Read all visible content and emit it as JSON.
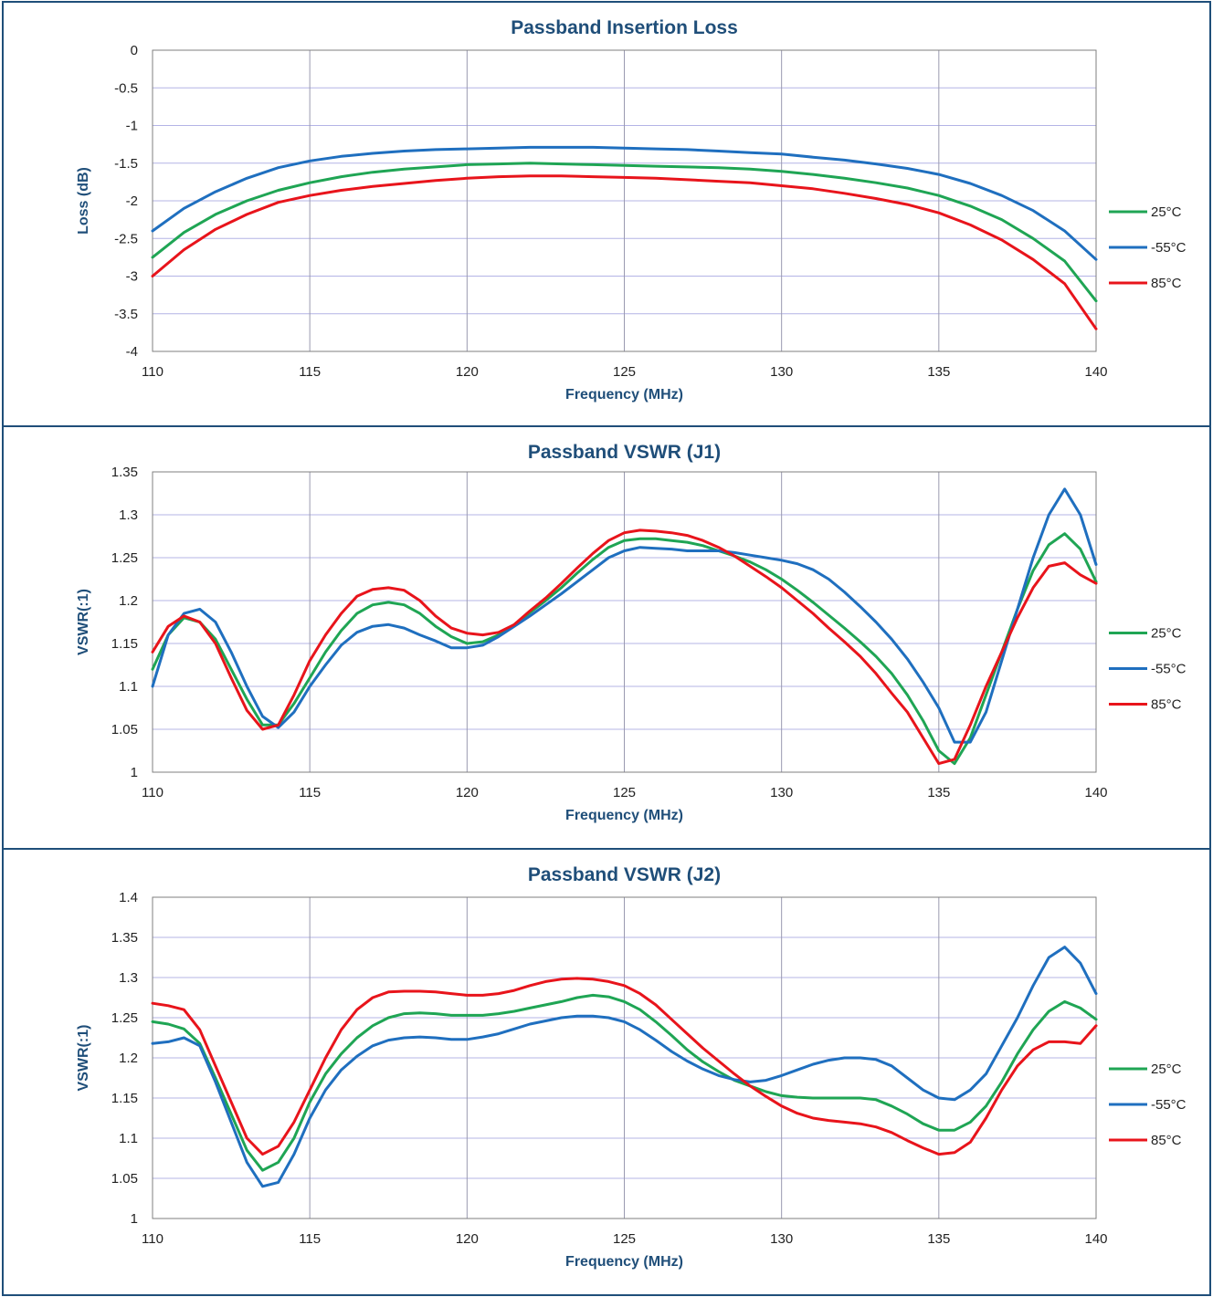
{
  "chart_data": [
    {
      "type": "line",
      "title": "Passband Insertion Loss",
      "xlabel": "Frequency (MHz)",
      "ylabel": "Loss (dB)",
      "xlim": [
        110,
        140
      ],
      "ylim": [
        -4,
        0
      ],
      "xticks": [
        "110",
        "115",
        "120",
        "125",
        "130",
        "135",
        "140"
      ],
      "yticks": [
        "0",
        "-0.5",
        "-1",
        "-1.5",
        "-2",
        "-2.5",
        "-3",
        "-3.5",
        "-4"
      ],
      "grid": true,
      "legend": "right",
      "x": [
        110,
        111,
        112,
        113,
        114,
        115,
        116,
        117,
        118,
        119,
        120,
        121,
        122,
        123,
        124,
        125,
        126,
        127,
        128,
        129,
        130,
        131,
        132,
        133,
        134,
        135,
        136,
        137,
        138,
        139,
        140
      ],
      "series": [
        {
          "name": "25°C",
          "color": "#1fa554",
          "values": [
            -2.75,
            -2.42,
            -2.18,
            -2.0,
            -1.86,
            -1.76,
            -1.68,
            -1.62,
            -1.58,
            -1.55,
            -1.52,
            -1.51,
            -1.5,
            -1.51,
            -1.52,
            -1.53,
            -1.54,
            -1.55,
            -1.56,
            -1.58,
            -1.61,
            -1.65,
            -1.7,
            -1.76,
            -1.83,
            -1.93,
            -2.07,
            -2.25,
            -2.5,
            -2.8,
            -3.33
          ]
        },
        {
          "name": "-55°C",
          "color": "#1f6fbf",
          "values": [
            -2.4,
            -2.1,
            -1.88,
            -1.7,
            -1.56,
            -1.47,
            -1.41,
            -1.37,
            -1.34,
            -1.32,
            -1.31,
            -1.3,
            -1.29,
            -1.29,
            -1.29,
            -1.3,
            -1.31,
            -1.32,
            -1.34,
            -1.36,
            -1.38,
            -1.42,
            -1.46,
            -1.51,
            -1.57,
            -1.65,
            -1.77,
            -1.93,
            -2.13,
            -2.4,
            -2.78
          ]
        },
        {
          "name": "85°C",
          "color": "#e8141b",
          "values": [
            -3.0,
            -2.65,
            -2.38,
            -2.18,
            -2.02,
            -1.93,
            -1.86,
            -1.81,
            -1.77,
            -1.73,
            -1.7,
            -1.68,
            -1.67,
            -1.67,
            -1.68,
            -1.69,
            -1.7,
            -1.72,
            -1.74,
            -1.76,
            -1.8,
            -1.84,
            -1.9,
            -1.97,
            -2.05,
            -2.16,
            -2.32,
            -2.52,
            -2.78,
            -3.1,
            -3.7
          ]
        }
      ]
    },
    {
      "type": "line",
      "title": "Passband VSWR (J1)",
      "xlabel": "Frequency (MHz)",
      "ylabel": "VSWR(:1)",
      "xlim": [
        110,
        140
      ],
      "ylim": [
        1,
        1.35
      ],
      "xticks": [
        "110",
        "115",
        "120",
        "125",
        "130",
        "135",
        "140"
      ],
      "yticks": [
        "1.35",
        "1.3",
        "1.25",
        "1.2",
        "1.15",
        "1.1",
        "1.05",
        "1"
      ],
      "grid": true,
      "legend": "right",
      "x": [
        110,
        110.5,
        111,
        111.5,
        112,
        112.5,
        113,
        113.5,
        114,
        114.5,
        115,
        115.5,
        116,
        116.5,
        117,
        117.5,
        118,
        118.5,
        119,
        119.5,
        120,
        120.5,
        121,
        121.5,
        122,
        122.5,
        123,
        123.5,
        124,
        124.5,
        125,
        125.5,
        126,
        126.5,
        127,
        127.5,
        128,
        128.5,
        129,
        129.5,
        130,
        130.5,
        131,
        131.5,
        132,
        132.5,
        133,
        133.5,
        134,
        134.5,
        135,
        135.5,
        136,
        136.5,
        137,
        137.5,
        138,
        138.5,
        139,
        139.5,
        140
      ],
      "series": [
        {
          "name": "25°C",
          "color": "#1fa554",
          "values": [
            1.12,
            1.16,
            1.18,
            1.175,
            1.155,
            1.12,
            1.085,
            1.055,
            1.055,
            1.08,
            1.11,
            1.14,
            1.165,
            1.185,
            1.195,
            1.198,
            1.195,
            1.185,
            1.17,
            1.158,
            1.15,
            1.152,
            1.16,
            1.172,
            1.186,
            1.2,
            1.215,
            1.232,
            1.248,
            1.262,
            1.27,
            1.272,
            1.272,
            1.27,
            1.268,
            1.264,
            1.258,
            1.252,
            1.245,
            1.236,
            1.225,
            1.212,
            1.198,
            1.183,
            1.168,
            1.152,
            1.135,
            1.115,
            1.09,
            1.06,
            1.025,
            1.01,
            1.04,
            1.09,
            1.14,
            1.19,
            1.235,
            1.265,
            1.278,
            1.26,
            1.222
          ]
        },
        {
          "name": "-55°C",
          "color": "#1f6fbf",
          "values": [
            1.1,
            1.16,
            1.185,
            1.19,
            1.175,
            1.14,
            1.1,
            1.065,
            1.052,
            1.07,
            1.1,
            1.125,
            1.148,
            1.163,
            1.17,
            1.172,
            1.168,
            1.16,
            1.153,
            1.145,
            1.145,
            1.148,
            1.158,
            1.17,
            1.182,
            1.195,
            1.208,
            1.222,
            1.236,
            1.25,
            1.258,
            1.262,
            1.261,
            1.26,
            1.258,
            1.258,
            1.258,
            1.256,
            1.253,
            1.25,
            1.247,
            1.243,
            1.236,
            1.225,
            1.21,
            1.193,
            1.175,
            1.155,
            1.132,
            1.105,
            1.075,
            1.035,
            1.035,
            1.07,
            1.13,
            1.19,
            1.25,
            1.3,
            1.33,
            1.3,
            1.242
          ]
        },
        {
          "name": "85°C",
          "color": "#e8141b",
          "values": [
            1.14,
            1.17,
            1.182,
            1.175,
            1.15,
            1.11,
            1.072,
            1.05,
            1.055,
            1.09,
            1.13,
            1.16,
            1.185,
            1.205,
            1.213,
            1.215,
            1.212,
            1.2,
            1.182,
            1.168,
            1.162,
            1.16,
            1.163,
            1.172,
            1.188,
            1.203,
            1.22,
            1.238,
            1.255,
            1.27,
            1.279,
            1.282,
            1.281,
            1.279,
            1.276,
            1.27,
            1.262,
            1.252,
            1.24,
            1.228,
            1.215,
            1.2,
            1.185,
            1.168,
            1.152,
            1.135,
            1.115,
            1.092,
            1.07,
            1.04,
            1.01,
            1.015,
            1.055,
            1.1,
            1.14,
            1.18,
            1.215,
            1.24,
            1.244,
            1.23,
            1.22
          ]
        }
      ]
    },
    {
      "type": "line",
      "title": "Passband VSWR (J2)",
      "xlabel": "Frequency (MHz)",
      "ylabel": "VSWR(:1)",
      "xlim": [
        110,
        140
      ],
      "ylim": [
        1,
        1.4
      ],
      "xticks": [
        "110",
        "115",
        "120",
        "125",
        "130",
        "135",
        "140"
      ],
      "yticks": [
        "1.4",
        "1.35",
        "1.3",
        "1.25",
        "1.2",
        "1.15",
        "1.1",
        "1.05",
        "1"
      ],
      "grid": true,
      "legend": "right",
      "x": [
        110,
        110.5,
        111,
        111.5,
        112,
        112.5,
        113,
        113.5,
        114,
        114.5,
        115,
        115.5,
        116,
        116.5,
        117,
        117.5,
        118,
        118.5,
        119,
        119.5,
        120,
        120.5,
        121,
        121.5,
        122,
        122.5,
        123,
        123.5,
        124,
        124.5,
        125,
        125.5,
        126,
        126.5,
        127,
        127.5,
        128,
        128.5,
        129,
        129.5,
        130,
        130.5,
        131,
        131.5,
        132,
        132.5,
        133,
        133.5,
        134,
        134.5,
        135,
        135.5,
        136,
        136.5,
        137,
        137.5,
        138,
        138.5,
        139,
        139.5,
        140
      ],
      "series": [
        {
          "name": "25°C",
          "color": "#1fa554",
          "values": [
            1.245,
            1.242,
            1.236,
            1.218,
            1.175,
            1.13,
            1.085,
            1.06,
            1.07,
            1.1,
            1.145,
            1.18,
            1.205,
            1.225,
            1.24,
            1.25,
            1.255,
            1.256,
            1.255,
            1.253,
            1.253,
            1.253,
            1.255,
            1.258,
            1.262,
            1.266,
            1.27,
            1.275,
            1.278,
            1.276,
            1.27,
            1.26,
            1.245,
            1.228,
            1.21,
            1.195,
            1.183,
            1.172,
            1.165,
            1.158,
            1.153,
            1.151,
            1.15,
            1.15,
            1.15,
            1.15,
            1.148,
            1.14,
            1.13,
            1.118,
            1.11,
            1.11,
            1.12,
            1.14,
            1.17,
            1.205,
            1.235,
            1.258,
            1.27,
            1.262,
            1.248
          ]
        },
        {
          "name": "-55°C",
          "color": "#1f6fbf",
          "values": [
            1.218,
            1.22,
            1.225,
            1.215,
            1.17,
            1.12,
            1.07,
            1.04,
            1.045,
            1.08,
            1.125,
            1.16,
            1.185,
            1.202,
            1.215,
            1.222,
            1.225,
            1.226,
            1.225,
            1.223,
            1.223,
            1.226,
            1.23,
            1.236,
            1.242,
            1.246,
            1.25,
            1.252,
            1.252,
            1.25,
            1.245,
            1.235,
            1.222,
            1.208,
            1.196,
            1.186,
            1.178,
            1.173,
            1.17,
            1.172,
            1.178,
            1.185,
            1.192,
            1.197,
            1.2,
            1.2,
            1.198,
            1.19,
            1.175,
            1.16,
            1.15,
            1.148,
            1.16,
            1.18,
            1.215,
            1.25,
            1.29,
            1.325,
            1.338,
            1.318,
            1.28
          ]
        },
        {
          "name": "85°C",
          "color": "#e8141b",
          "values": [
            1.268,
            1.265,
            1.26,
            1.235,
            1.19,
            1.145,
            1.1,
            1.08,
            1.09,
            1.12,
            1.16,
            1.2,
            1.235,
            1.26,
            1.275,
            1.282,
            1.283,
            1.283,
            1.282,
            1.28,
            1.278,
            1.278,
            1.28,
            1.284,
            1.29,
            1.295,
            1.298,
            1.299,
            1.298,
            1.295,
            1.29,
            1.28,
            1.266,
            1.248,
            1.23,
            1.212,
            1.196,
            1.18,
            1.165,
            1.152,
            1.14,
            1.131,
            1.125,
            1.122,
            1.12,
            1.118,
            1.114,
            1.107,
            1.097,
            1.088,
            1.08,
            1.082,
            1.095,
            1.125,
            1.16,
            1.19,
            1.21,
            1.22,
            1.22,
            1.218,
            1.24
          ]
        }
      ]
    }
  ]
}
